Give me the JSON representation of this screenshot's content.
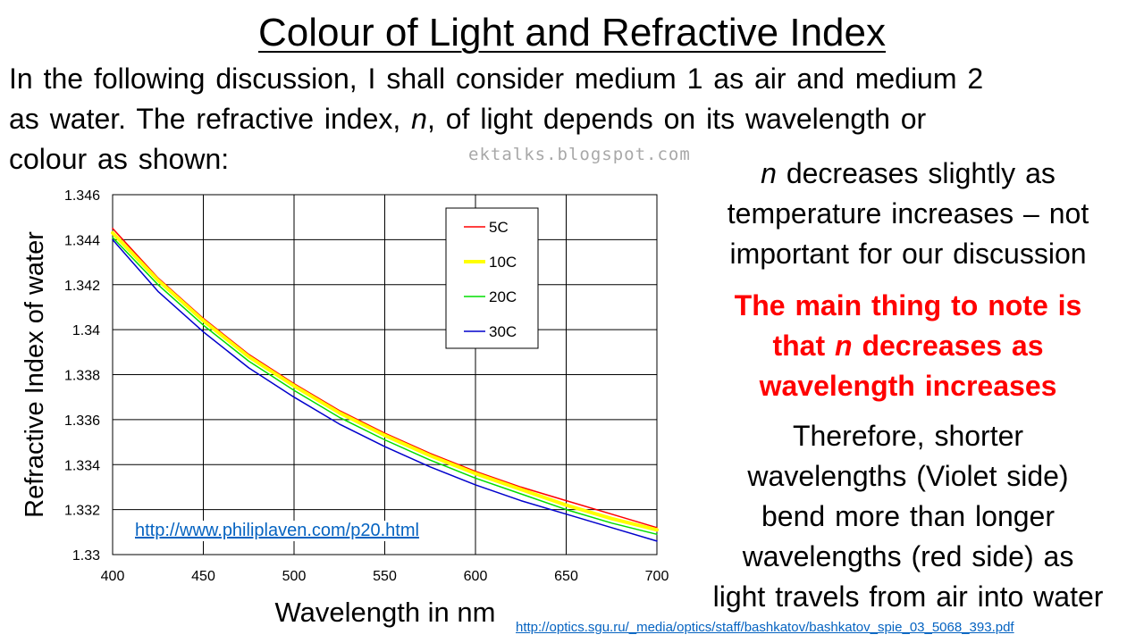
{
  "slide": {
    "title": "Colour of Light and Refractive Index",
    "intro": {
      "line1": "In the following discussion, I shall consider medium 1 as air and medium 2",
      "line2_a": "as water.  The refractive index, ",
      "line2_var": "n",
      "line2_b": ", of light depends on its wavelength or",
      "line3": "colour as shown:"
    },
    "watermark": "ektalks.blogspot.com",
    "note1": {
      "var": "n",
      "line1_rest": " decreases slightly as",
      "line2": "temperature increases – not",
      "line3": "important for our discussion"
    },
    "note2": {
      "line1": "The main thing to note is",
      "line2_a": "that ",
      "line2_var": "n",
      "line2_b": " decreases as",
      "line3": "wavelength increases"
    },
    "note3": {
      "line1": "Therefore, shorter",
      "line2": "wavelengths (Violet side)",
      "line3": "bend more than longer",
      "line4": "wavelengths (red side) as",
      "line5": "light travels from air into water"
    },
    "plot_link": "http://www.philiplaven.com/p20.html",
    "source_link": "http://optics.sgu.ru/_media/optics/staff/bashkatov/bashkatov_spie_03_5068_393.pdf"
  },
  "colors": {
    "note_highlight": "#ff0000",
    "link": "#0563c1"
  },
  "chart_data": {
    "type": "line",
    "title": "",
    "xlabel": "Wavelength in nm",
    "ylabel": "Refractive Index of water",
    "xlim": [
      400,
      700
    ],
    "ylim": [
      1.33,
      1.346
    ],
    "xticks": [
      400,
      450,
      500,
      550,
      600,
      650,
      700
    ],
    "yticks": [
      1.33,
      1.332,
      1.334,
      1.336,
      1.338,
      1.34,
      1.342,
      1.344,
      1.346
    ],
    "xtick_labels": [
      "400",
      "450",
      "500",
      "550",
      "600",
      "650",
      "700"
    ],
    "ytick_labels": [
      "1.33",
      "1.332",
      "1.334",
      "1.336",
      "1.338",
      "1.34",
      "1.342",
      "1.344",
      "1.346"
    ],
    "grid": true,
    "legend_position": "top-right",
    "x": [
      400,
      425,
      450,
      475,
      500,
      525,
      550,
      575,
      600,
      625,
      650,
      675,
      700
    ],
    "series": [
      {
        "name": "5C",
        "color": "#ff0000",
        "width": 1.5,
        "values": [
          1.3445,
          1.3423,
          1.3405,
          1.3389,
          1.3376,
          1.3364,
          1.3354,
          1.3345,
          1.3337,
          1.333,
          1.3324,
          1.3318,
          1.3312
        ]
      },
      {
        "name": "10C",
        "color": "#ffff00",
        "width": 4,
        "values": [
          1.3443,
          1.3422,
          1.3404,
          1.3388,
          1.3375,
          1.3363,
          1.3353,
          1.3344,
          1.3336,
          1.3329,
          1.3322,
          1.3316,
          1.3311
        ]
      },
      {
        "name": "20C",
        "color": "#00dd00",
        "width": 1.5,
        "values": [
          1.3441,
          1.342,
          1.3402,
          1.3386,
          1.3373,
          1.3361,
          1.3351,
          1.3342,
          1.3334,
          1.3327,
          1.332,
          1.3314,
          1.3309
        ]
      },
      {
        "name": "30C",
        "color": "#0000cc",
        "width": 1.5,
        "values": [
          1.344,
          1.3417,
          1.3399,
          1.3383,
          1.337,
          1.3358,
          1.3348,
          1.3339,
          1.3331,
          1.3324,
          1.3318,
          1.3312,
          1.3306
        ]
      }
    ]
  }
}
